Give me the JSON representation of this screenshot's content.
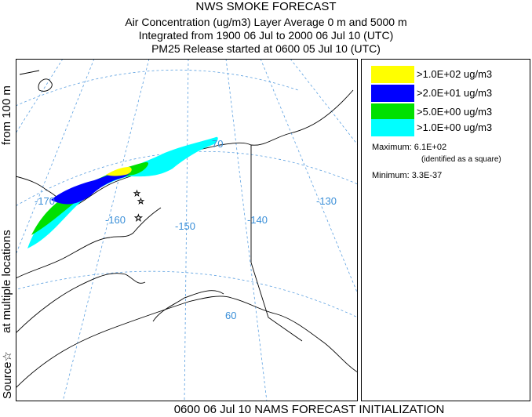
{
  "header": {
    "title": "NWS SMOKE FORECAST",
    "line2": "Air Concentration (ug/m3) Layer Average    0 m and  5000 m",
    "line3": "Integrated from 1900 06 Jul to 2000 06 Jul 10 (UTC)",
    "line4": "PM25 Release started at 0600 05 Jul 10 (UTC)"
  },
  "side_label": {
    "top": "from   100 m",
    "middle": "at multiple locations",
    "source": "Source☆"
  },
  "map": {
    "longitude_labels": [
      "-170",
      "-160",
      "-150",
      "-140",
      "-130"
    ],
    "latitude_labels": [
      "70",
      "60"
    ],
    "graticule_color": "#3a8fd8"
  },
  "legend": {
    "items": [
      {
        "label": ">1.0E+02 ug/m3",
        "color": "#ffff00"
      },
      {
        "label": ">2.0E+01 ug/m3",
        "color": "#0000ff"
      },
      {
        "label": ">5.0E+00 ug/m3",
        "color": "#00e000"
      },
      {
        "label": ">1.0E+00 ug/m3",
        "color": "#00ffff"
      }
    ],
    "maximum": "Maximum: 6.1E+02",
    "maximum_note": "(identified as a square)",
    "minimum": "Minimum: 3.3E-37"
  },
  "footer": "0600 06 Jul 10 NAMS FORECAST INITIALIZATION"
}
